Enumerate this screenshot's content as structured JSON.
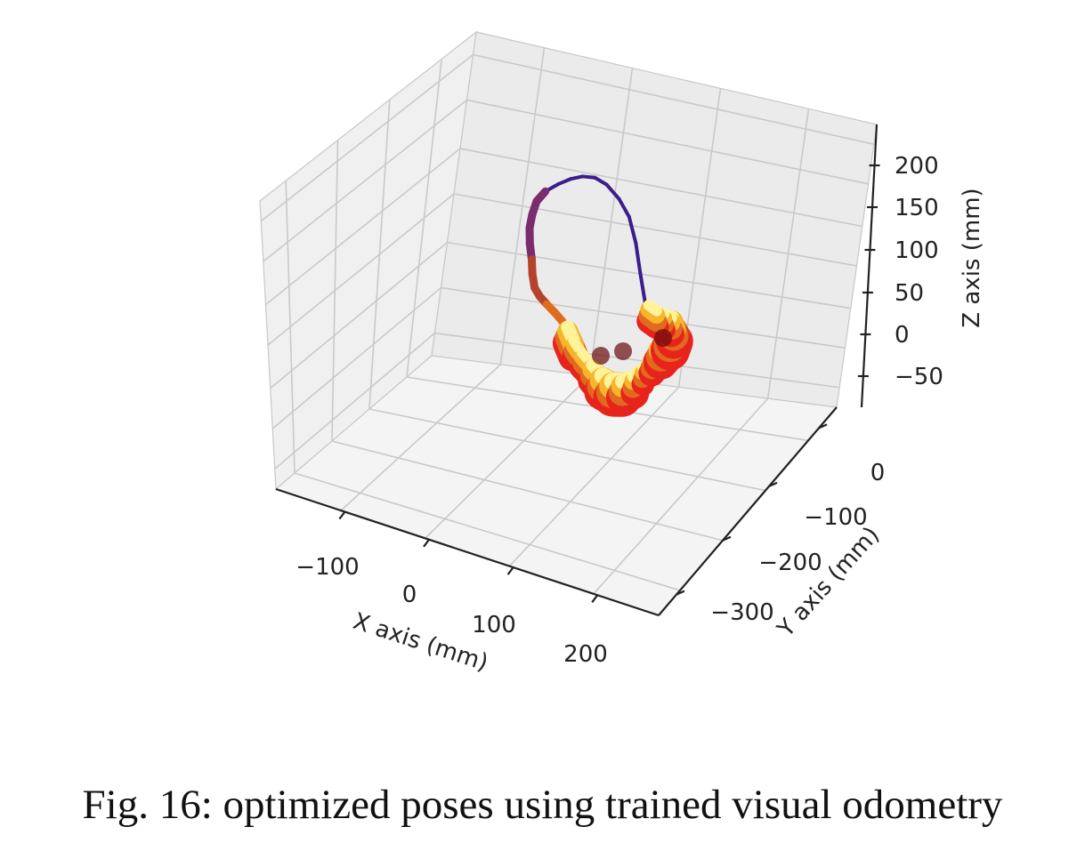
{
  "chart_data": {
    "type": "line3d",
    "title": "",
    "xlabel": "X axis (mm)",
    "ylabel": "Y axis (mm)",
    "zlabel": "Z axis (mm)",
    "x_ticks": [
      "−100",
      "0",
      "100",
      "200"
    ],
    "y_ticks": [
      "0",
      "−100",
      "−200",
      "−300"
    ],
    "z_ticks": [
      "200",
      "150",
      "100",
      "50",
      "0",
      "−50"
    ],
    "xlim": [
      -200,
      250
    ],
    "ylim": [
      -350,
      50
    ],
    "zlim": [
      -80,
      240
    ],
    "grid": true,
    "legend": "none",
    "colormap": [
      "#3b1e8c",
      "#7a2c6e",
      "#b5432a",
      "#e06a1e",
      "#f7b52c",
      "#fff39a",
      "#e8231c",
      "#6a0a0a"
    ],
    "series": [
      {
        "trajectory_color_scale": "plasma-to-hot",
        "points": [
          [
            90,
            -60,
            50
          ],
          [
            85,
            -58,
            80
          ],
          [
            80,
            -55,
            110
          ],
          [
            72,
            -52,
            135
          ],
          [
            60,
            -50,
            150
          ],
          [
            45,
            -48,
            160
          ],
          [
            30,
            -46,
            162
          ],
          [
            15,
            -45,
            158
          ],
          [
            0,
            -44,
            150
          ],
          [
            -15,
            -45,
            140
          ],
          [
            -30,
            -46,
            128
          ],
          [
            -40,
            -48,
            115
          ],
          [
            -45,
            -50,
            100
          ],
          [
            -48,
            -52,
            85
          ],
          [
            -47,
            -55,
            70
          ],
          [
            -44,
            -58,
            55
          ],
          [
            -42,
            -62,
            42
          ],
          [
            -38,
            -66,
            30
          ],
          [
            -30,
            -70,
            25
          ],
          [
            -20,
            -74,
            22
          ],
          [
            -8,
            -78,
            18
          ],
          [
            5,
            -82,
            12
          ],
          [
            10,
            -86,
            5
          ],
          [
            18,
            -90,
            -5
          ],
          [
            30,
            -95,
            -12
          ],
          [
            45,
            -100,
            -18
          ],
          [
            60,
            -106,
            -22
          ],
          [
            75,
            -112,
            -20
          ],
          [
            90,
            -118,
            -12
          ],
          [
            105,
            -122,
            0
          ],
          [
            118,
            -124,
            15
          ],
          [
            128,
            -120,
            28
          ],
          [
            135,
            -112,
            38
          ],
          [
            140,
            -100,
            45
          ],
          [
            138,
            -88,
            48
          ],
          [
            130,
            -78,
            48
          ],
          [
            118,
            -70,
            44
          ],
          [
            105,
            -64,
            40
          ],
          [
            95,
            -62,
            42
          ]
        ]
      }
    ]
  },
  "caption": "Fig. 16: optimized poses using trained visual odometry"
}
